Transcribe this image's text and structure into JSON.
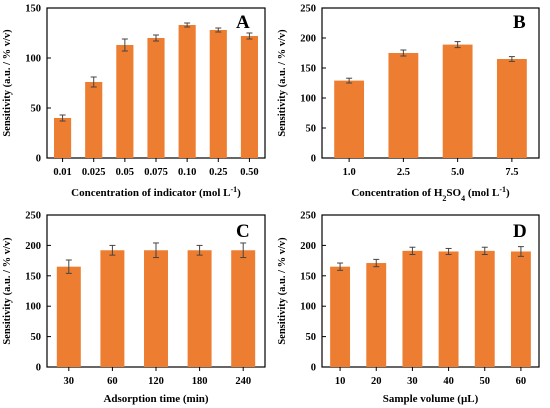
{
  "colors": {
    "bar": "#ED7D31",
    "axis": "#000000",
    "error": "#444444"
  },
  "chart_data": [
    {
      "panel": "A",
      "type": "bar",
      "categories": [
        "0.01",
        "0.025",
        "0.05",
        "0.075",
        "0.10",
        "0.25",
        "0.50"
      ],
      "values": [
        40,
        76,
        113,
        120,
        133,
        128,
        122
      ],
      "errors": [
        3,
        5,
        6,
        3,
        2,
        2,
        3
      ],
      "xlabel": {
        "main": "Concentration of indicator (mol L",
        "sup": "-1",
        "post": ")"
      },
      "ylabel": "Sensitivity (a.u. / % v/v)",
      "ylim": [
        0,
        150
      ],
      "yticks": [
        "0",
        "50",
        "100",
        "150"
      ]
    },
    {
      "panel": "B",
      "type": "bar",
      "categories": [
        "1.0",
        "2.5",
        "5.0",
        "7.5"
      ],
      "values": [
        129,
        175,
        189,
        165
      ],
      "errors": [
        4,
        5,
        5,
        4
      ],
      "xlabel": {
        "pre": "Concentration of H",
        "sub1": "2",
        "mid": "SO",
        "sub2": "4",
        "post": " (mol L",
        "sup": "-1",
        "end": ")"
      },
      "ylabel": "Sensitivity (a.u. / % v/v)",
      "ylim": [
        0,
        250
      ],
      "yticks": [
        "0",
        "50",
        "100",
        "150",
        "200",
        "250"
      ]
    },
    {
      "panel": "C",
      "type": "bar",
      "categories": [
        "30",
        "60",
        "120",
        "180",
        "240"
      ],
      "values": [
        165,
        192,
        192,
        192,
        192
      ],
      "errors": [
        11,
        8,
        12,
        8,
        12
      ],
      "xlabel": {
        "main": "Adsorption time (min)"
      },
      "ylabel": "Sensitivity (a.u. / % v/v)",
      "ylim": [
        0,
        250
      ],
      "yticks": [
        "0",
        "50",
        "100",
        "150",
        "200",
        "250"
      ]
    },
    {
      "panel": "D",
      "type": "bar",
      "categories": [
        "10",
        "20",
        "30",
        "40",
        "50",
        "60"
      ],
      "values": [
        165,
        171,
        191,
        190,
        191,
        190
      ],
      "errors": [
        6,
        6,
        6,
        5,
        6,
        8
      ],
      "xlabel": {
        "main": "Sample volume (µL)"
      },
      "ylabel": "Sensitivity (a.u. / % v/v)",
      "ylim": [
        0,
        250
      ],
      "yticks": [
        "0",
        "50",
        "100",
        "150",
        "200",
        "250"
      ]
    }
  ]
}
